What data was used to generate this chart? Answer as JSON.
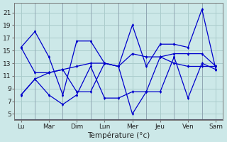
{
  "background_color": "#cce8e8",
  "grid_color": "#aacccc",
  "line_color": "#0000cc",
  "marker_color": "#0000cc",
  "xlabel": "Température (°c)",
  "yticks": [
    5,
    7,
    9,
    11,
    13,
    15,
    17,
    19,
    21
  ],
  "ylim": [
    4.0,
    22.5
  ],
  "series": [
    {
      "x": [
        0,
        1,
        2,
        3,
        4,
        5,
        6,
        7,
        8,
        9,
        10,
        11,
        12,
        13,
        14
      ],
      "y": [
        15.5,
        18.0,
        14.0,
        8.0,
        16.5,
        16.5,
        13.0,
        12.5,
        19.0,
        12.5,
        16.0,
        16.0,
        15.5,
        21.5,
        12.0
      ]
    },
    {
      "x": [
        0,
        1,
        2,
        3,
        4,
        5,
        6,
        7,
        8,
        9,
        10,
        11,
        12,
        13,
        14
      ],
      "y": [
        8.0,
        10.5,
        8.0,
        6.5,
        8.0,
        12.5,
        7.5,
        7.5,
        8.5,
        8.5,
        8.5,
        14.0,
        7.5,
        13.0,
        12.0
      ]
    },
    {
      "x": [
        0,
        1,
        2,
        3,
        4,
        5,
        6,
        7,
        8,
        9,
        10,
        11,
        12,
        13,
        14
      ],
      "y": [
        15.5,
        11.5,
        11.5,
        12.0,
        12.5,
        13.0,
        13.0,
        12.5,
        14.5,
        14.0,
        14.0,
        14.5,
        14.5,
        14.5,
        12.5
      ]
    },
    {
      "x": [
        0,
        1,
        2,
        3,
        4,
        5,
        6,
        7,
        8,
        9,
        10,
        11,
        12,
        13,
        14
      ],
      "y": [
        8.0,
        10.5,
        11.5,
        12.0,
        8.5,
        8.5,
        13.0,
        12.5,
        5.0,
        8.5,
        14.0,
        13.0,
        12.5,
        12.5,
        12.5
      ]
    }
  ],
  "xtick_positions": [
    0,
    2,
    4,
    6,
    8,
    10,
    12,
    14
  ],
  "xtick_labels": [
    "Lu",
    "Mar",
    "Dim",
    "Lun",
    "Mer",
    "Jeu",
    "Ven",
    "Sam"
  ],
  "xlim": [
    -0.5,
    14.5
  ],
  "day_separators": [
    1,
    3,
    5,
    7,
    9,
    11,
    13
  ]
}
